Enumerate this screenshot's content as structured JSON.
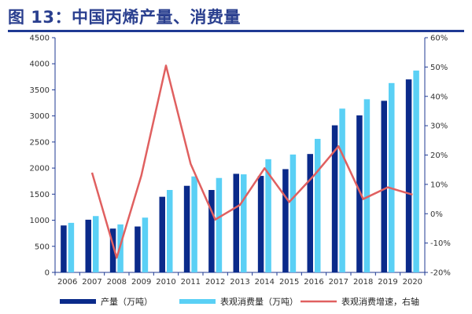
{
  "header": {
    "title": "图 13：中国丙烯产量、消费量"
  },
  "chart_data": {
    "type": "bar",
    "title": "图 13：中国丙烯产量、消费量",
    "categories": [
      "2006",
      "2007",
      "2008",
      "2009",
      "2010",
      "2011",
      "2012",
      "2013",
      "2014",
      "2015",
      "2016",
      "2017",
      "2018",
      "2019",
      "2020"
    ],
    "series": [
      {
        "name": "产量（万吨）",
        "type": "bar",
        "axis": "left",
        "color": "#0a2a8a",
        "values": [
          900,
          1010,
          840,
          880,
          1450,
          1660,
          1580,
          1890,
          1850,
          1980,
          2270,
          2820,
          3010,
          3290,
          3700
        ]
      },
      {
        "name": "表观消费量（万吨）",
        "type": "bar",
        "axis": "left",
        "color": "#5ad0f5",
        "values": [
          950,
          1080,
          920,
          1050,
          1580,
          1840,
          1810,
          1880,
          2170,
          2260,
          2560,
          3140,
          3320,
          3630,
          3870
        ]
      },
      {
        "name": "表观消费增速，右轴",
        "type": "line",
        "axis": "right",
        "color": "#e06060",
        "values": [
          null,
          14,
          -15,
          13,
          50.5,
          17,
          -2,
          3,
          15.5,
          4,
          13,
          23,
          5,
          9,
          6.5
        ]
      }
    ],
    "y_left": {
      "min": 0,
      "max": 4500,
      "step": 500,
      "ticks": [
        "0",
        "500",
        "1000",
        "1500",
        "2000",
        "2500",
        "3000",
        "3500",
        "4000",
        "4500"
      ]
    },
    "y_right": {
      "min": -20,
      "max": 60,
      "step": 10,
      "ticks": [
        "-20%",
        "-10%",
        "0%",
        "10%",
        "20%",
        "30%",
        "40%",
        "50%",
        "60%"
      ]
    },
    "grid": false,
    "legend": "bottom",
    "colors": {
      "axis": "#1f3a93",
      "title": "#2a3f8f"
    }
  }
}
